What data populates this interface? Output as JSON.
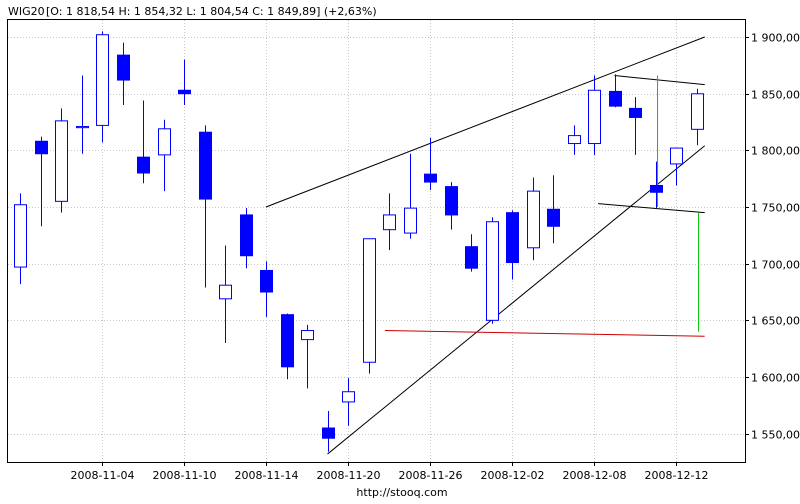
{
  "header": {
    "ticker": "WIG20",
    "ohlc_text": "[O: 1 818,54  H: 1 854,32  L: 1 804,54  C: 1 849,89] (+2,63%)"
  },
  "footer": {
    "source_url": "http://stooq.com"
  },
  "colors": {
    "up_fill": "#ffffff",
    "down_fill": "#0000ff",
    "candle_stroke": "#0000ff",
    "trendline": "#000000",
    "support_line": "#cc0000",
    "marker_line": "#00cc00",
    "grid": "#c8c8c8"
  },
  "chart_data": {
    "type": "candlestick",
    "title": "",
    "y_axis_side": "right",
    "ylim": [
      1525,
      1915
    ],
    "yticks": [
      {
        "value": 1550,
        "label": "1 550,00"
      },
      {
        "value": 1600,
        "label": "1 600,00"
      },
      {
        "value": 1650,
        "label": "1 650,00"
      },
      {
        "value": 1700,
        "label": "1 700,00"
      },
      {
        "value": 1750,
        "label": "1 750,00"
      },
      {
        "value": 1800,
        "label": "1 800,00"
      },
      {
        "value": 1850,
        "label": "1 850,00"
      },
      {
        "value": 1900,
        "label": "1 900,00"
      }
    ],
    "grid": true,
    "xticks": [
      {
        "index": 4,
        "label": "2008-11-04"
      },
      {
        "index": 8,
        "label": "2008-11-10"
      },
      {
        "index": 12,
        "label": "2008-11-14"
      },
      {
        "index": 16,
        "label": "2008-11-20"
      },
      {
        "index": 20,
        "label": "2008-11-26"
      },
      {
        "index": 24,
        "label": "2008-12-02"
      },
      {
        "index": 28,
        "label": "2008-12-08"
      },
      {
        "index": 32,
        "label": "2008-12-12"
      }
    ],
    "candles": [
      {
        "o": 1697,
        "h": 1762,
        "l": 1682,
        "c": 1752
      },
      {
        "o": 1808,
        "h": 1812,
        "l": 1733,
        "c": 1797
      },
      {
        "o": 1755,
        "h": 1837,
        "l": 1745,
        "c": 1826
      },
      {
        "o": 1820,
        "h": 1866,
        "l": 1797,
        "c": 1821
      },
      {
        "o": 1822,
        "h": 1905,
        "l": 1807,
        "c": 1902
      },
      {
        "o": 1884,
        "h": 1895,
        "l": 1840,
        "c": 1862
      },
      {
        "o": 1794,
        "h": 1844,
        "l": 1771,
        "c": 1780
      },
      {
        "o": 1796,
        "h": 1827,
        "l": 1764,
        "c": 1819
      },
      {
        "o": 1853,
        "h": 1880,
        "l": 1840,
        "c": 1850
      },
      {
        "o": 1816,
        "h": 1822,
        "l": 1679,
        "c": 1757
      },
      {
        "o": 1669,
        "h": 1716,
        "l": 1630,
        "c": 1681
      },
      {
        "o": 1743,
        "h": 1749,
        "l": 1696,
        "c": 1707
      },
      {
        "o": 1694,
        "h": 1702,
        "l": 1653,
        "c": 1675
      },
      {
        "o": 1655,
        "h": 1656,
        "l": 1598,
        "c": 1609
      },
      {
        "o": 1633,
        "h": 1646,
        "l": 1590,
        "c": 1641
      },
      {
        "o": 1555,
        "h": 1570,
        "l": 1534,
        "c": 1546
      },
      {
        "o": 1578,
        "h": 1599,
        "l": 1557,
        "c": 1587
      },
      {
        "o": 1613,
        "h": 1722,
        "l": 1603,
        "c": 1722
      },
      {
        "o": 1730,
        "h": 1762,
        "l": 1712,
        "c": 1743
      },
      {
        "o": 1727,
        "h": 1797,
        "l": 1722,
        "c": 1749
      },
      {
        "o": 1779,
        "h": 1811,
        "l": 1765,
        "c": 1772
      },
      {
        "o": 1768,
        "h": 1772,
        "l": 1730,
        "c": 1743
      },
      {
        "o": 1715,
        "h": 1726,
        "l": 1693,
        "c": 1696
      },
      {
        "o": 1650,
        "h": 1741,
        "l": 1647,
        "c": 1737
      },
      {
        "o": 1745,
        "h": 1747,
        "l": 1686,
        "c": 1701
      },
      {
        "o": 1714,
        "h": 1776,
        "l": 1703,
        "c": 1764
      },
      {
        "o": 1748,
        "h": 1778,
        "l": 1718,
        "c": 1733
      },
      {
        "o": 1806,
        "h": 1822,
        "l": 1796,
        "c": 1813
      },
      {
        "o": 1806,
        "h": 1866,
        "l": 1796,
        "c": 1853
      },
      {
        "o": 1852,
        "h": 1867,
        "l": 1838,
        "c": 1839
      },
      {
        "o": 1837,
        "h": 1847,
        "l": 1796,
        "c": 1829
      },
      {
        "o": 1769,
        "h": 1790,
        "l": 1749,
        "c": 1763
      },
      {
        "o": 1788,
        "h": 1802,
        "l": 1769,
        "c": 1802
      },
      {
        "o": 1818.54,
        "h": 1854.32,
        "l": 1804.54,
        "c": 1849.89
      }
    ],
    "lines": [
      {
        "name": "upper-trendline",
        "color": "#000000",
        "points": [
          {
            "i": 12,
            "v": 1750
          },
          {
            "i": 33.4,
            "v": 1900
          }
        ]
      },
      {
        "name": "lower-trendline",
        "color": "#000000",
        "points": [
          {
            "i": 15,
            "v": 1532
          },
          {
            "i": 33.4,
            "v": 1804
          }
        ]
      },
      {
        "name": "channel-top-line",
        "color": "#000000",
        "points": [
          {
            "i": 29,
            "v": 1866
          },
          {
            "i": 33.4,
            "v": 1858
          }
        ]
      },
      {
        "name": "channel-bottom-line",
        "color": "#000000",
        "points": [
          {
            "i": 28.2,
            "v": 1753
          },
          {
            "i": 33.4,
            "v": 1745
          }
        ]
      },
      {
        "name": "support-line",
        "color": "#cc0000",
        "points": [
          {
            "i": 17.8,
            "v": 1641
          },
          {
            "i": 33.4,
            "v": 1636
          }
        ]
      },
      {
        "name": "green-marker-1",
        "color": "#00cc00",
        "points": [
          {
            "i": 31.1,
            "v": 1866
          },
          {
            "i": 31.1,
            "v": 1750
          }
        ]
      },
      {
        "name": "green-marker-2",
        "color": "#00cc00",
        "points": [
          {
            "i": 33.1,
            "v": 1745
          },
          {
            "i": 33.1,
            "v": 1640
          }
        ]
      }
    ]
  }
}
